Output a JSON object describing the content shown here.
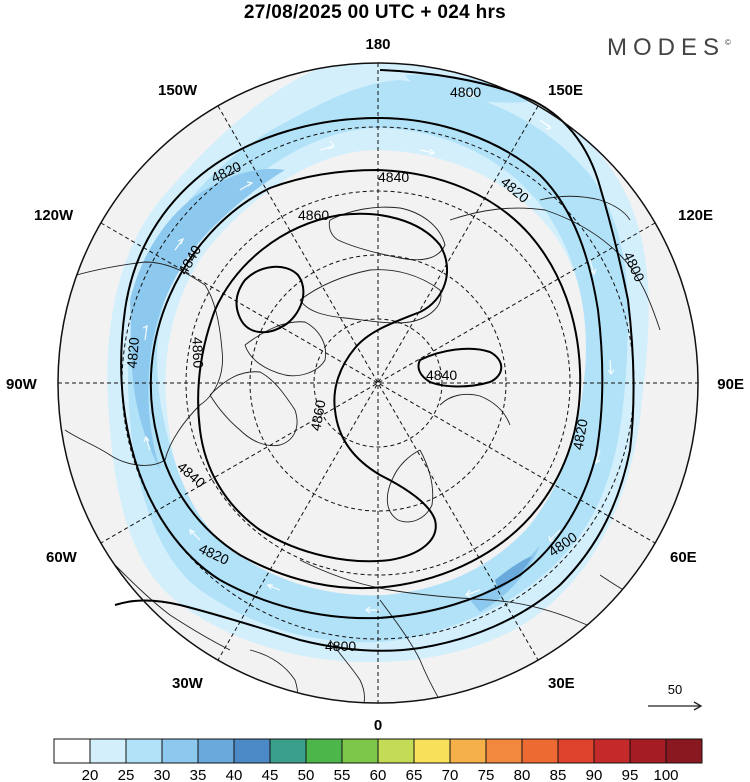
{
  "header": {
    "title": "27/08/2025  00 UTC  + 024 hrs",
    "brand": "MODES",
    "brand_mark": "©"
  },
  "map": {
    "projection": "polar stereographic, north pole",
    "longitude_labels": {
      "top": "180",
      "bottom": "0",
      "left": "90W",
      "right": "90E",
      "upper_left": "150W",
      "upper_right": "150E",
      "left_upper": "120W",
      "right_upper": "120E",
      "left_lower": "60W",
      "right_lower": "60E",
      "lower_left": "30W",
      "lower_right": "30E"
    },
    "contour_labels": [
      "4800",
      "4820",
      "4840",
      "4860"
    ],
    "contour_label_instances": [
      "4800",
      "4820",
      "4840",
      "4860",
      "4820",
      "4800",
      "4840",
      "4820",
      "4860",
      "4860",
      "4840",
      "4820",
      "4840",
      "4820",
      "4800",
      "4800",
      "4820",
      "4840",
      "4860"
    ],
    "vector_reference": "50",
    "colors": {
      "land": "#f2f2f2",
      "wind_25": "#c9eafa",
      "wind_30": "#aad8f3",
      "wind_35": "#8cc6ec",
      "wind_40": "#5ea9dc",
      "wind_45": "#4a8fcc"
    }
  },
  "colorbar": {
    "ticks": [
      "20",
      "25",
      "30",
      "35",
      "40",
      "45",
      "50",
      "55",
      "60",
      "65",
      "70",
      "75",
      "80",
      "85",
      "90",
      "95",
      "100"
    ],
    "colors": [
      "#ffffff",
      "#d3effc",
      "#b2e2f8",
      "#8dc9ee",
      "#6aa9dc",
      "#4b8ac7",
      "#3aa08c",
      "#4cb64a",
      "#7dc84b",
      "#c4dc55",
      "#f7e15a",
      "#f5b04a",
      "#f2883e",
      "#ee6a33",
      "#e0432d",
      "#c42a2a",
      "#a51c24",
      "#8a1820"
    ]
  }
}
